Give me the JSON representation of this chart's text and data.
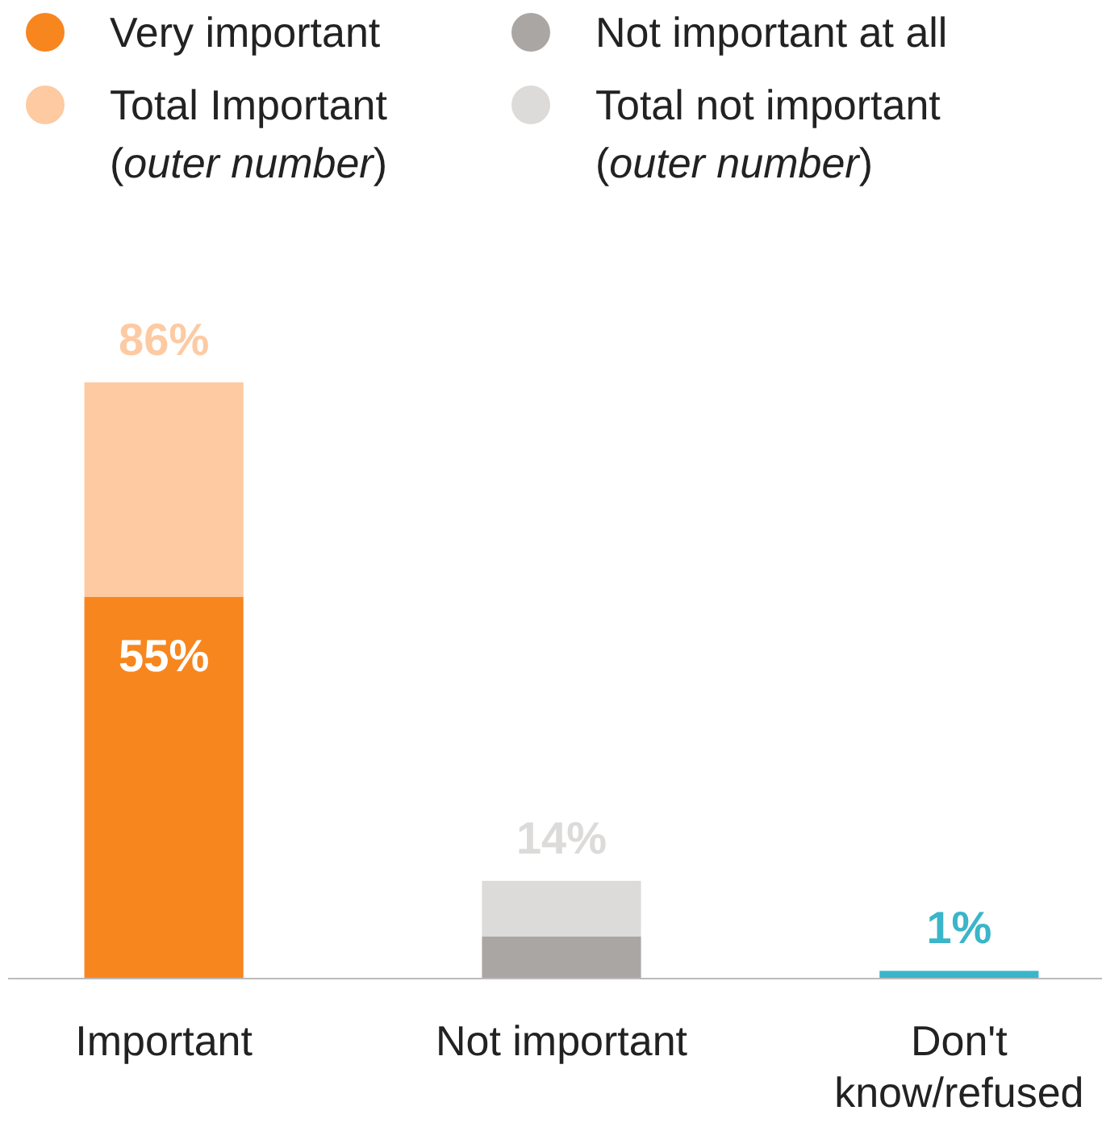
{
  "chart_data": {
    "type": "bar",
    "stacked": true,
    "legend": "top",
    "categories": [
      "Important",
      "Not important",
      "Don't know/refused"
    ],
    "series": [
      {
        "name": "Very important",
        "color": "#f7861f",
        "values": [
          55,
          null,
          null
        ],
        "value_labels": [
          "55%",
          null,
          null
        ]
      },
      {
        "name": "Total Important (outer number)",
        "color": "#fdcaa2",
        "values": [
          31,
          null,
          null
        ]
      },
      {
        "name": "Not important at all",
        "color": "#aaa6a3",
        "values": [
          null,
          6,
          null
        ]
      },
      {
        "name": "Total not important (outer number)",
        "color": "#dcdbd9",
        "values": [
          null,
          8,
          null
        ]
      },
      {
        "color": "#3ab5c9",
        "values": [
          null,
          null,
          1
        ]
      }
    ],
    "totals": [
      "86%",
      "14%",
      "1%"
    ]
  }
}
